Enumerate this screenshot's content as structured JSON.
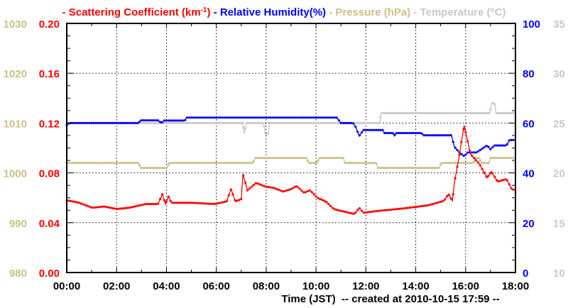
{
  "chart_data": {
    "type": "line",
    "legend_placement": "top",
    "legend": [
      {
        "prefix": "- ",
        "name": "Scattering Coefficient (km",
        "sup": "-1",
        "suffix": ")",
        "color": "#ff0000"
      },
      {
        "prefix": " - ",
        "name": "Relative Humidity(%)",
        "color": "#0000ff"
      },
      {
        "prefix": " - ",
        "name": "Pressure (hPa)",
        "color": "#c8c088"
      },
      {
        "prefix": " - ",
        "name": "Temperature (",
        "sup": "o",
        "suffix": "C)",
        "color": "#c8c8c8"
      }
    ],
    "xlabel": "Time (JST)  -- created at 2010-10-15 17:59 --",
    "xlim": [
      0,
      18
    ],
    "x_ticks": [
      "00:00",
      "02:00",
      "04:00",
      "06:00",
      "08:00",
      "10:00",
      "12:00",
      "14:00",
      "16:00",
      "18:00"
    ],
    "grid": true,
    "axes": {
      "scattering": {
        "side": "left-inner",
        "lim": [
          0,
          0.2
        ],
        "ticks": [
          "0.00",
          "0.04",
          "0.08",
          "0.12",
          "0.16",
          "0.20"
        ],
        "color": "#ff0000"
      },
      "pressure": {
        "side": "left-outer",
        "lim": [
          980,
          1030
        ],
        "ticks": [
          "980",
          "990",
          "1000",
          "1010",
          "1020",
          "1030"
        ],
        "color": "#c8c088"
      },
      "humidity": {
        "side": "right-inner",
        "lim": [
          0,
          100
        ],
        "ticks": [
          "0",
          "20",
          "40",
          "60",
          "80",
          "100"
        ],
        "color": "#0000ff"
      },
      "temperature": {
        "side": "right-outer",
        "lim": [
          10,
          35
        ],
        "ticks": [
          "10",
          "15",
          "20",
          "25",
          "30",
          "35"
        ],
        "color": "#c8c8c8"
      }
    },
    "series": [
      {
        "name": "Temperature",
        "axis": "temperature",
        "color": "#c8c8c8",
        "x": [
          0,
          7.05,
          7.13,
          7.2,
          7.9,
          7.96,
          8.08,
          8.15,
          12.56,
          12.6,
          16.97,
          17.05,
          17.16,
          17.22,
          18
        ],
        "y": [
          25,
          25,
          23.9,
          25,
          25,
          23.9,
          23.9,
          25,
          25,
          26,
          26,
          27,
          27,
          26,
          26
        ]
      },
      {
        "name": "Pressure",
        "axis": "pressure",
        "color": "#c8c088",
        "x": [
          0,
          2.89,
          2.95,
          4.03,
          4.1,
          7.48,
          7.55,
          9.62,
          9.7,
          10.05,
          10.12,
          11.1,
          11.15,
          12.41,
          12.48,
          14.95,
          15.02,
          16.32,
          16.4,
          16.55,
          16.62,
          16.95,
          17.0,
          18
        ],
        "y": [
          1002,
          1002,
          1001,
          1001,
          1002,
          1002,
          1003,
          1003,
          1002,
          1002,
          1003,
          1003,
          1002,
          1002,
          1001,
          1001,
          1002,
          1002,
          1003,
          1003,
          1002,
          1002,
          1003,
          1003
        ]
      },
      {
        "name": "Relative Humidity",
        "axis": "humidity",
        "color": "#0000ff",
        "x": [
          0,
          0.1,
          2.89,
          2.95,
          3.66,
          3.8,
          3.9,
          4.74,
          4.8,
          10.83,
          11.0,
          11.49,
          11.6,
          11.73,
          11.9,
          12.68,
          12.75,
          13.08,
          13.14,
          13.2,
          14.23,
          14.3,
          15.43,
          15.55,
          15.73,
          15.94,
          16.09,
          16.44,
          16.86,
          17.0,
          17.16,
          17.64,
          17.76,
          17.88,
          18
        ],
        "y": [
          59.1,
          60,
          60,
          61.1,
          61.1,
          60,
          61,
          61,
          62.2,
          62.2,
          60,
          60,
          58.3,
          54.8,
          57.2,
          57.2,
          56,
          56,
          54.8,
          56,
          56,
          55.1,
          55.1,
          50.5,
          48.4,
          46.7,
          48.2,
          48.2,
          51,
          49.5,
          51,
          51,
          53.2,
          53.2,
          53.2
        ]
      },
      {
        "name": "Scattering Coefficient",
        "axis": "scattering",
        "color": "#ff0000",
        "x": [
          0,
          0.5,
          1.03,
          1.5,
          2.0,
          2.5,
          3.18,
          3.66,
          3.84,
          3.96,
          4.08,
          4.2,
          5.0,
          5.93,
          6.41,
          6.59,
          6.77,
          7.0,
          7.07,
          7.25,
          7.6,
          7.96,
          8.3,
          8.68,
          9.0,
          9.22,
          9.52,
          9.76,
          10.05,
          10.4,
          10.71,
          11.1,
          11.55,
          11.73,
          11.9,
          12.3,
          12.74,
          13.3,
          13.94,
          14.5,
          15.13,
          15.31,
          15.47,
          15.55,
          15.73,
          15.94,
          16.2,
          16.56,
          16.86,
          17.04,
          17.28,
          17.64,
          17.85,
          18
        ],
        "y": [
          0.058,
          0.056,
          0.052,
          0.053,
          0.051,
          0.052,
          0.055,
          0.055,
          0.063,
          0.055,
          0.061,
          0.056,
          0.056,
          0.055,
          0.057,
          0.067,
          0.057,
          0.059,
          0.079,
          0.066,
          0.072,
          0.069,
          0.068,
          0.065,
          0.067,
          0.0695,
          0.064,
          0.066,
          0.06,
          0.057,
          0.051,
          0.049,
          0.047,
          0.052,
          0.048,
          0.049,
          0.05,
          0.051,
          0.0525,
          0.054,
          0.0575,
          0.063,
          0.0575,
          0.072,
          0.092,
          0.118,
          0.095,
          0.087,
          0.076,
          0.081,
          0.073,
          0.075,
          0.067,
          0.066
        ]
      }
    ]
  }
}
